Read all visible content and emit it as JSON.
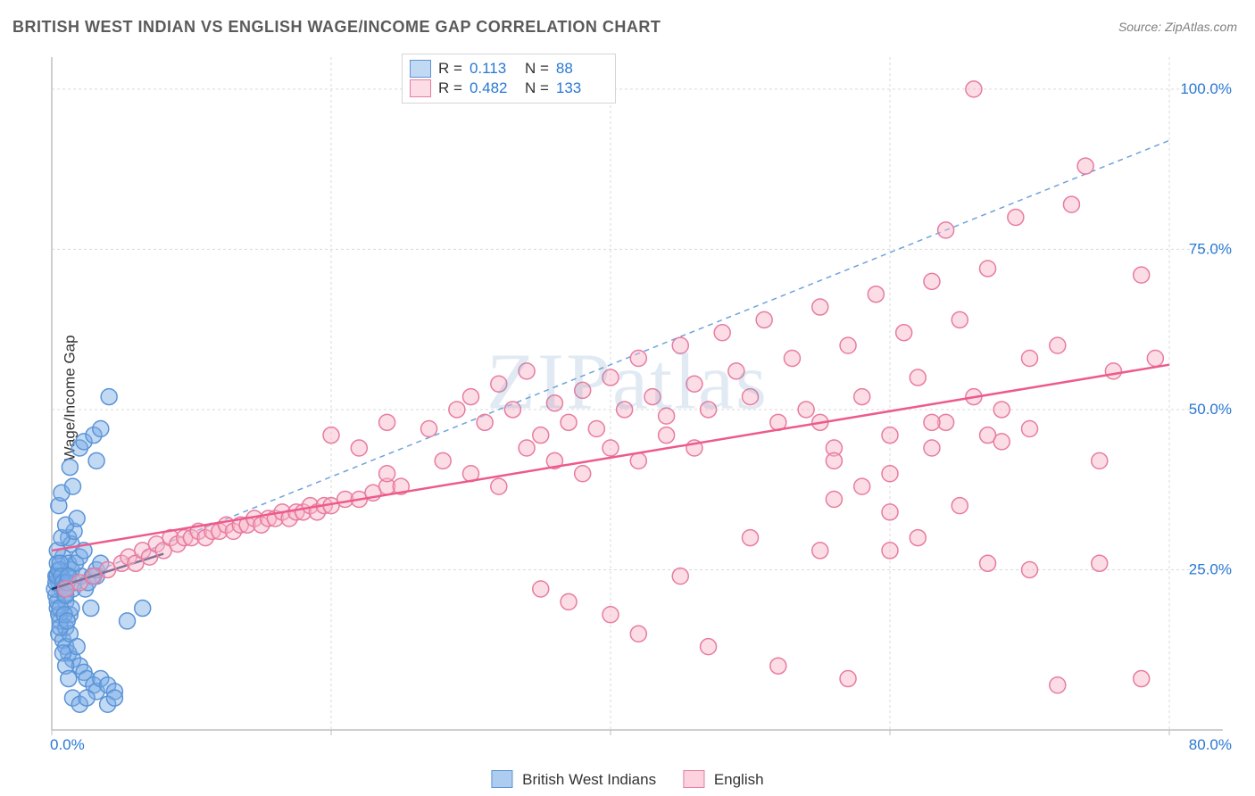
{
  "title": "BRITISH WEST INDIAN VS ENGLISH WAGE/INCOME GAP CORRELATION CHART",
  "source": "Source: ZipAtlas.com",
  "ylabel": "Wage/Income Gap",
  "watermark": "ZIPatlas",
  "chart": {
    "type": "scatter",
    "background_color": "#ffffff",
    "grid_color": "#d9d9d9",
    "axis_color": "#bfbfbf",
    "xlim": [
      0,
      80
    ],
    "ylim": [
      0,
      105
    ],
    "xtick_step": 20,
    "ytick_step": 25,
    "xtick_labels": [
      "0.0%",
      "",
      "",
      "",
      "80.0%"
    ],
    "ytick_labels": [
      "",
      "25.0%",
      "50.0%",
      "75.0%",
      "100.0%"
    ],
    "label_color": "#2878d4",
    "label_fontsize": 17,
    "marker_radius": 9,
    "marker_stroke_width": 1.5,
    "trend_line_width": 2,
    "ideal_line_dash": "6,5",
    "ideal_line_color": "#6fa3db",
    "ideal_line": {
      "x1": 0,
      "y1": 22,
      "x2": 80,
      "y2": 92
    },
    "series": [
      {
        "name": "British West Indians",
        "r": "0.113",
        "n": "88",
        "fill_color": "rgba(120,170,230,0.45)",
        "stroke_color": "#5b94d6",
        "trend_color": "#1f3a6e",
        "trend": {
          "x1": 0,
          "y1": 22,
          "x2": 8,
          "y2": 27.5
        },
        "points": [
          [
            0.3,
            24
          ],
          [
            0.4,
            26
          ],
          [
            0.5,
            23
          ],
          [
            0.6,
            25
          ],
          [
            0.7,
            22
          ],
          [
            0.8,
            27
          ],
          [
            0.9,
            21
          ],
          [
            1.0,
            20
          ],
          [
            1.1,
            24
          ],
          [
            1.2,
            26
          ],
          [
            1.3,
            18
          ],
          [
            1.4,
            19
          ],
          [
            1.5,
            22
          ],
          [
            1.6,
            23
          ],
          [
            0.5,
            15
          ],
          [
            0.8,
            14
          ],
          [
            1.0,
            13
          ],
          [
            1.2,
            12
          ],
          [
            1.5,
            11
          ],
          [
            2.0,
            10
          ],
          [
            2.3,
            9
          ],
          [
            0.6,
            17
          ],
          [
            1.0,
            16
          ],
          [
            1.3,
            15
          ],
          [
            1.8,
            13
          ],
          [
            2.5,
            8
          ],
          [
            3.0,
            7
          ],
          [
            3.2,
            6
          ],
          [
            3.5,
            8
          ],
          [
            4.0,
            7
          ],
          [
            4.5,
            6
          ],
          [
            1.2,
            30
          ],
          [
            1.4,
            29
          ],
          [
            1.6,
            31
          ],
          [
            0.4,
            28
          ],
          [
            0.7,
            30
          ],
          [
            1.0,
            32
          ],
          [
            1.8,
            33
          ],
          [
            2.4,
            22
          ],
          [
            2.8,
            19
          ],
          [
            3.2,
            24
          ],
          [
            2.1,
            24
          ],
          [
            0.5,
            35
          ],
          [
            0.7,
            37
          ],
          [
            1.5,
            38
          ],
          [
            2.0,
            44
          ],
          [
            2.3,
            45
          ],
          [
            3.0,
            46
          ],
          [
            3.2,
            42
          ],
          [
            3.5,
            47
          ],
          [
            4.1,
            52
          ],
          [
            1.3,
            41
          ],
          [
            0.4,
            19
          ],
          [
            0.5,
            18
          ],
          [
            0.6,
            16
          ],
          [
            0.8,
            12
          ],
          [
            1.0,
            10
          ],
          [
            1.2,
            8
          ],
          [
            1.5,
            5
          ],
          [
            2.0,
            4
          ],
          [
            2.5,
            5
          ],
          [
            4.0,
            4
          ],
          [
            4.5,
            5
          ],
          [
            5.4,
            17
          ],
          [
            6.5,
            19
          ],
          [
            0.3,
            21
          ],
          [
            0.4,
            20
          ],
          [
            0.6,
            19
          ],
          [
            0.9,
            18
          ],
          [
            1.1,
            17
          ],
          [
            1.4,
            25
          ],
          [
            1.7,
            26
          ],
          [
            2.0,
            27
          ],
          [
            2.3,
            28
          ],
          [
            2.6,
            23
          ],
          [
            2.9,
            24
          ],
          [
            3.2,
            25
          ],
          [
            3.5,
            26
          ],
          [
            0.2,
            22
          ],
          [
            0.3,
            23
          ],
          [
            0.4,
            24
          ],
          [
            0.5,
            25
          ],
          [
            0.6,
            26
          ],
          [
            0.7,
            24
          ],
          [
            0.8,
            23
          ],
          [
            0.9,
            22
          ],
          [
            1.0,
            21
          ],
          [
            1.1,
            23
          ],
          [
            1.2,
            24
          ]
        ]
      },
      {
        "name": "English",
        "r": "0.482",
        "n": "133",
        "fill_color": "rgba(248,180,200,0.45)",
        "stroke_color": "#e77ca0",
        "trend_color": "#ed5a8b",
        "trend": {
          "x1": 0,
          "y1": 28,
          "x2": 80,
          "y2": 57
        },
        "points": [
          [
            1,
            22
          ],
          [
            2,
            23
          ],
          [
            3,
            24
          ],
          [
            4,
            25
          ],
          [
            5,
            26
          ],
          [
            5.5,
            27
          ],
          [
            6,
            26
          ],
          [
            6.5,
            28
          ],
          [
            7,
            27
          ],
          [
            7.5,
            29
          ],
          [
            8,
            28
          ],
          [
            8.5,
            30
          ],
          [
            9,
            29
          ],
          [
            9.5,
            30
          ],
          [
            10,
            30
          ],
          [
            10.5,
            31
          ],
          [
            11,
            30
          ],
          [
            11.5,
            31
          ],
          [
            12,
            31
          ],
          [
            12.5,
            32
          ],
          [
            13,
            31
          ],
          [
            13.5,
            32
          ],
          [
            14,
            32
          ],
          [
            14.5,
            33
          ],
          [
            15,
            32
          ],
          [
            15.5,
            33
          ],
          [
            16,
            33
          ],
          [
            16.5,
            34
          ],
          [
            17,
            33
          ],
          [
            17.5,
            34
          ],
          [
            18,
            34
          ],
          [
            18.5,
            35
          ],
          [
            19,
            34
          ],
          [
            19.5,
            35
          ],
          [
            20,
            35
          ],
          [
            21,
            36
          ],
          [
            22,
            36
          ],
          [
            23,
            37
          ],
          [
            24,
            38
          ],
          [
            25,
            38
          ],
          [
            20,
            46
          ],
          [
            22,
            44
          ],
          [
            24,
            48
          ],
          [
            27,
            47
          ],
          [
            29,
            50
          ],
          [
            30,
            52
          ],
          [
            31,
            48
          ],
          [
            32,
            54
          ],
          [
            33,
            50
          ],
          [
            34,
            56
          ],
          [
            35,
            46
          ],
          [
            36,
            51
          ],
          [
            37,
            48
          ],
          [
            38,
            53
          ],
          [
            39,
            47
          ],
          [
            40,
            55
          ],
          [
            41,
            50
          ],
          [
            42,
            58
          ],
          [
            43,
            52
          ],
          [
            44,
            49
          ],
          [
            45,
            60
          ],
          [
            46,
            54
          ],
          [
            47,
            50
          ],
          [
            48,
            62
          ],
          [
            49,
            56
          ],
          [
            50,
            52
          ],
          [
            51,
            64
          ],
          [
            52,
            48
          ],
          [
            53,
            58
          ],
          [
            54,
            50
          ],
          [
            55,
            66
          ],
          [
            56,
            44
          ],
          [
            57,
            60
          ],
          [
            58,
            52
          ],
          [
            59,
            68
          ],
          [
            60,
            46
          ],
          [
            61,
            62
          ],
          [
            62,
            55
          ],
          [
            63,
            70
          ],
          [
            64,
            48
          ],
          [
            65,
            64
          ],
          [
            66,
            52
          ],
          [
            67,
            72
          ],
          [
            68,
            50
          ],
          [
            69,
            80
          ],
          [
            70,
            58
          ],
          [
            72,
            60
          ],
          [
            74,
            88
          ],
          [
            75,
            42
          ],
          [
            76,
            56
          ],
          [
            78,
            71
          ],
          [
            79,
            58
          ],
          [
            28,
            42
          ],
          [
            30,
            40
          ],
          [
            32,
            38
          ],
          [
            35,
            22
          ],
          [
            37,
            20
          ],
          [
            40,
            18
          ],
          [
            42,
            15
          ],
          [
            45,
            24
          ],
          [
            47,
            13
          ],
          [
            50,
            30
          ],
          [
            52,
            10
          ],
          [
            55,
            28
          ],
          [
            57,
            8
          ],
          [
            60,
            28
          ],
          [
            62,
            30
          ],
          [
            65,
            35
          ],
          [
            67,
            26
          ],
          [
            70,
            25
          ],
          [
            72,
            7
          ],
          [
            75,
            26
          ],
          [
            78,
            8
          ],
          [
            56,
            42
          ],
          [
            58,
            38
          ],
          [
            60,
            40
          ],
          [
            63,
            48
          ],
          [
            34,
            44
          ],
          [
            36,
            42
          ],
          [
            38,
            40
          ],
          [
            40,
            44
          ],
          [
            42,
            42
          ],
          [
            44,
            46
          ],
          [
            46,
            44
          ],
          [
            55,
            48
          ],
          [
            63,
            44
          ],
          [
            67,
            46
          ],
          [
            56,
            36
          ],
          [
            60,
            34
          ],
          [
            64,
            78
          ],
          [
            66,
            100
          ],
          [
            68,
            45
          ],
          [
            70,
            47
          ],
          [
            73,
            82
          ],
          [
            24,
            40
          ]
        ]
      }
    ]
  },
  "legend_bottom": [
    {
      "label": "British West Indians",
      "fill": "rgba(120,170,230,0.6)",
      "stroke": "#5b94d6"
    },
    {
      "label": "English",
      "fill": "rgba(248,180,200,0.6)",
      "stroke": "#e77ca0"
    }
  ]
}
